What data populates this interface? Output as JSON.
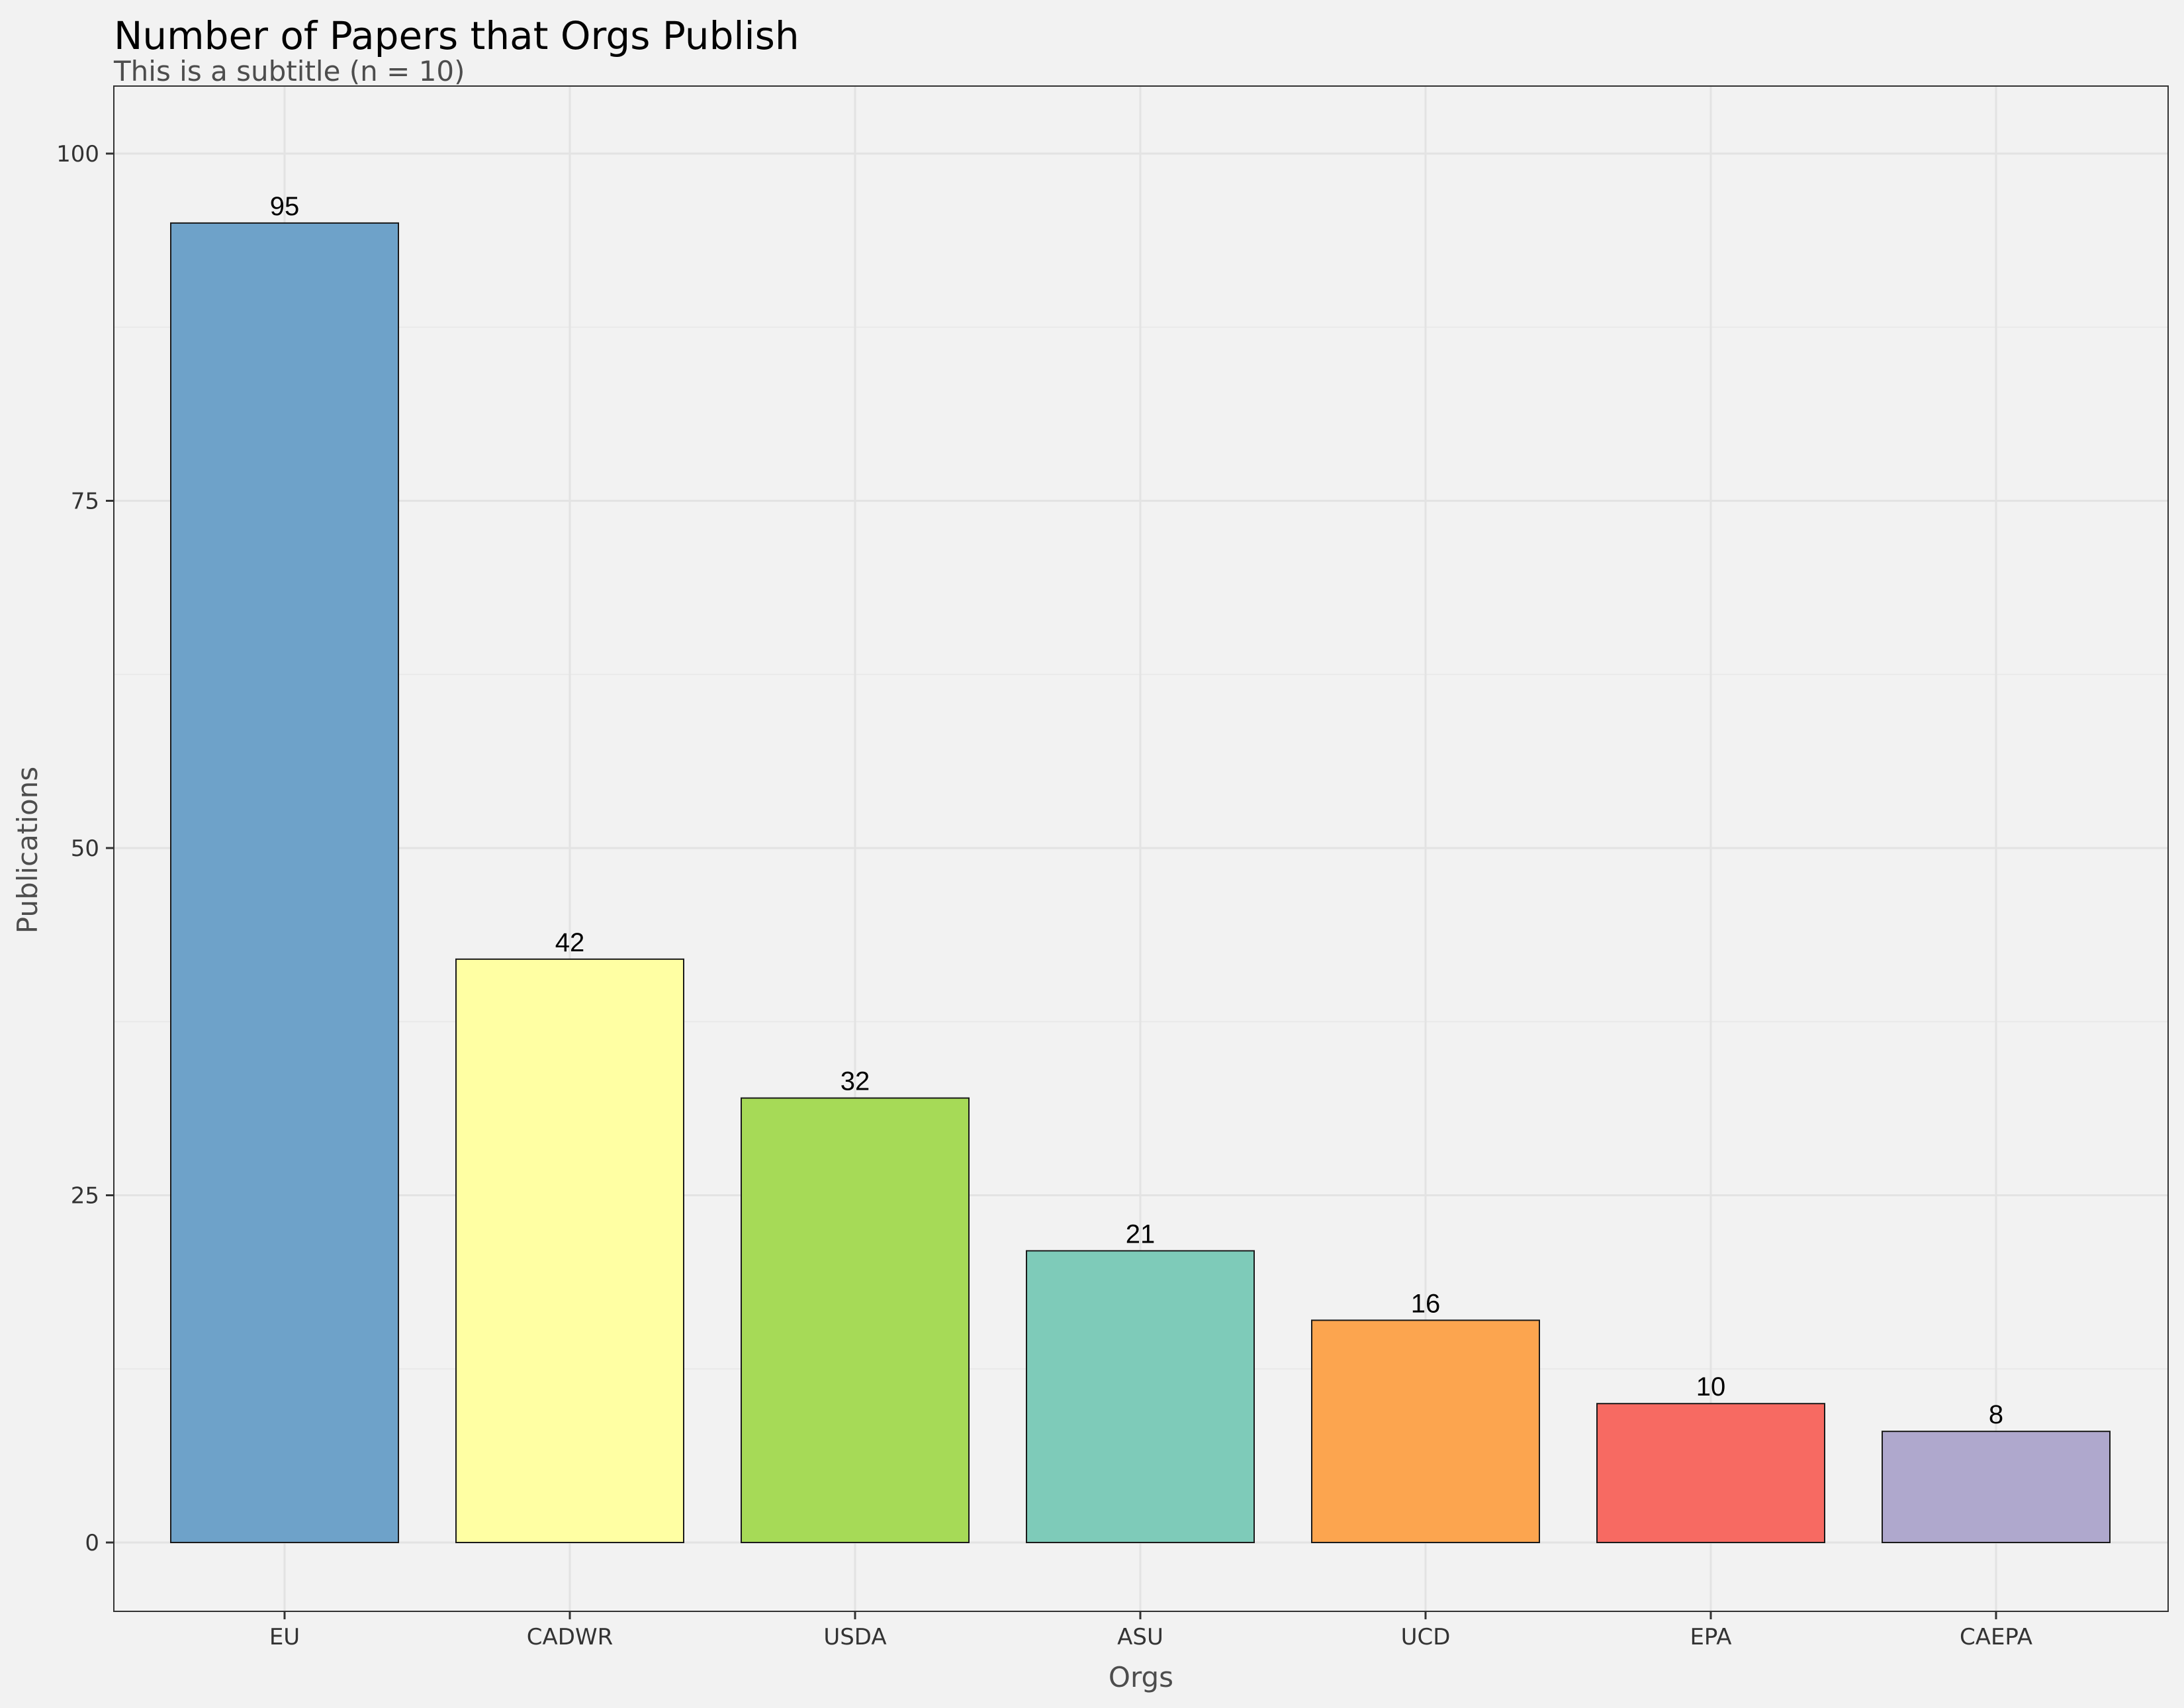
{
  "chart_data": {
    "type": "bar",
    "title": "Number of Papers that Orgs Publish",
    "subtitle": "This is a subtitle (n = 10)",
    "xlabel": "Orgs",
    "ylabel": "Publications",
    "categories": [
      "EU",
      "CADWR",
      "USDA",
      "ASU",
      "UCD",
      "EPA",
      "CAEPA"
    ],
    "values": [
      95,
      42,
      32,
      21,
      16,
      10,
      8
    ],
    "colors": [
      "#6ea2c9",
      "#ffffa3",
      "#a6da57",
      "#7ecbb9",
      "#fca54f",
      "#f76a62",
      "#afa8cd"
    ],
    "ylim": [
      0,
      100
    ],
    "yticks": [
      0,
      25,
      50,
      75,
      100
    ],
    "grid": true,
    "legend": "none"
  }
}
